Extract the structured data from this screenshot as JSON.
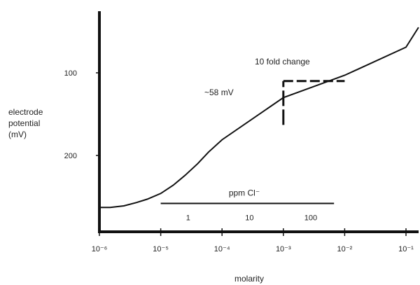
{
  "chart_data": {
    "type": "line",
    "xlabel": "molarity",
    "ylabel_lines": [
      "electrode",
      "potential",
      "(mV)"
    ],
    "x_scale": "log",
    "x_ticks": [
      {
        "value": 1e-06,
        "label": "10⁻⁶"
      },
      {
        "value": 1e-05,
        "label": "10⁻⁵"
      },
      {
        "value": 0.0001,
        "label": "10⁻⁴"
      },
      {
        "value": 0.001,
        "label": "10⁻³"
      },
      {
        "value": 0.01,
        "label": "10⁻²"
      },
      {
        "value": 0.1,
        "label": "10⁻¹"
      }
    ],
    "y_ticks": [
      {
        "value": 100,
        "label": "100"
      },
      {
        "value": 200,
        "label": "200"
      }
    ],
    "y_inverted": true,
    "ylim": [
      39,
      292
    ],
    "xlim": [
      1e-06,
      0.2
    ],
    "grid": false,
    "series": [
      {
        "x": [
          1e-06,
          1.5e-06,
          2.5e-06,
          4e-06,
          6e-06,
          1e-05,
          1.6e-05,
          2.5e-05,
          4e-05,
          6e-05,
          0.0001,
          0.001,
          0.01,
          0.1,
          0.16
        ],
        "y": [
          263,
          263,
          261,
          257,
          253,
          246,
          236,
          224,
          210,
          196,
          181,
          130,
          103,
          69,
          45
        ]
      }
    ],
    "annotations": [
      {
        "text": "10 fold change",
        "x": 0.0075,
        "y": 71
      },
      {
        "text": "~58 mV",
        "x": 0.0017,
        "y": 128
      }
    ],
    "step_marker": {
      "x1": 0.001,
      "x2": 0.01,
      "y_top": 110,
      "y_bottom": 163
    },
    "secondary_axis": {
      "title": "ppm Cl⁻",
      "ticks": [
        {
          "value": 1,
          "label": "1",
          "molarity": 2.8e-05
        },
        {
          "value": 10,
          "label": "10",
          "molarity": 0.00028
        },
        {
          "value": 100,
          "label": "100",
          "molarity": 0.0028
        }
      ],
      "y": 258,
      "x_from": 1e-05,
      "x_to": 0.0067
    }
  }
}
